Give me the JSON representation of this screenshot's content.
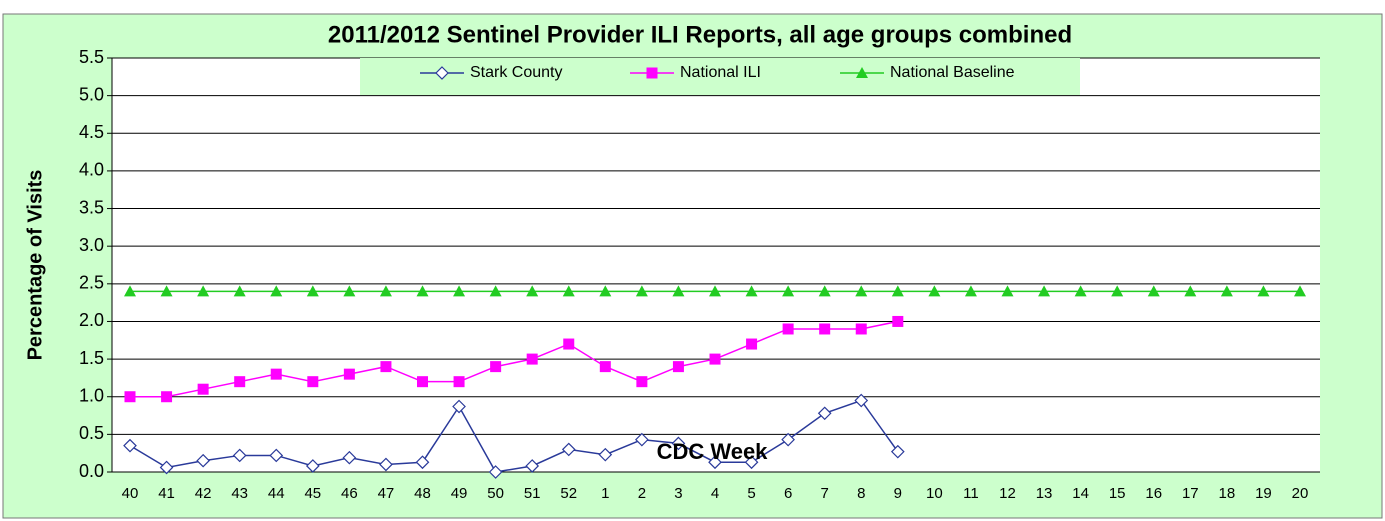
{
  "chart_data": {
    "type": "line",
    "title": "2011/2012 Sentinel Provider ILI Reports, all age groups combined",
    "y_label": "Percentage of Visits",
    "x_label": "CDC Week",
    "categories": [
      "40",
      "41",
      "42",
      "43",
      "44",
      "45",
      "46",
      "47",
      "48",
      "49",
      "50",
      "51",
      "52",
      "1",
      "2",
      "3",
      "4",
      "5",
      "6",
      "7",
      "8",
      "9",
      "10",
      "11",
      "12",
      "13",
      "14",
      "15",
      "16",
      "17",
      "18",
      "19",
      "20"
    ],
    "series": [
      {
        "name": "Stark County",
        "color": "#2a3a9a",
        "marker": "diamond",
        "values": [
          0.35,
          0.06,
          0.15,
          0.22,
          0.22,
          0.08,
          0.19,
          0.1,
          0.13,
          0.87,
          0.0,
          0.08,
          0.3,
          0.23,
          0.43,
          0.38,
          0.13,
          0.13,
          0.43,
          0.78,
          0.95,
          0.27,
          null,
          null,
          null,
          null,
          null,
          null,
          null,
          null,
          null,
          null,
          null
        ]
      },
      {
        "name": "National ILI",
        "color": "#ff00ff",
        "marker": "square",
        "values": [
          1.0,
          1.0,
          1.1,
          1.2,
          1.3,
          1.2,
          1.3,
          1.4,
          1.2,
          1.2,
          1.4,
          1.5,
          1.7,
          1.4,
          1.2,
          1.4,
          1.5,
          1.7,
          1.9,
          1.9,
          1.9,
          2.0,
          null,
          null,
          null,
          null,
          null,
          null,
          null,
          null,
          null,
          null,
          null
        ]
      },
      {
        "name": "National Baseline",
        "color": "#22cc22",
        "marker": "triangle",
        "values": [
          2.4,
          2.4,
          2.4,
          2.4,
          2.4,
          2.4,
          2.4,
          2.4,
          2.4,
          2.4,
          2.4,
          2.4,
          2.4,
          2.4,
          2.4,
          2.4,
          2.4,
          2.4,
          2.4,
          2.4,
          2.4,
          2.4,
          2.4,
          2.4,
          2.4,
          2.4,
          2.4,
          2.4,
          2.4,
          2.4,
          2.4,
          2.4,
          2.4
        ]
      }
    ],
    "ylim": [
      0,
      5.5
    ],
    "yticks": [
      {
        "value": 0,
        "label": "0.0"
      },
      0.5,
      {
        "value": 1,
        "label": "1.0"
      },
      1.5,
      {
        "value": 2,
        "label": "2.0"
      },
      2.5,
      {
        "value": 3,
        "label": "3.0"
      },
      3.5,
      {
        "value": 4,
        "label": "4.0"
      },
      4.5,
      {
        "value": 5,
        "label": "5.0"
      },
      5.5
    ],
    "grid": true,
    "legend": "top"
  }
}
